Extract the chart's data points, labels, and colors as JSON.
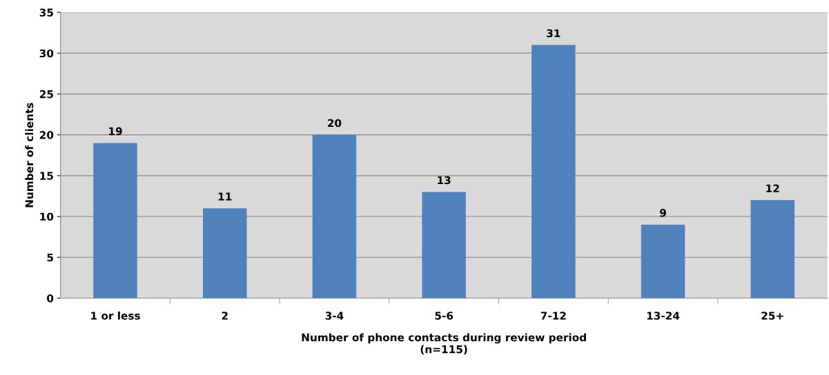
{
  "chart_data": {
    "type": "bar",
    "xlabel": "Number of phone contacts during review period\n(n=115)",
    "ylabel": "Number of clients",
    "categories": [
      "1 or less",
      "2",
      "3-4",
      "5-6",
      "7-12",
      "13-24",
      "25+"
    ],
    "values": [
      19,
      11,
      20,
      13,
      31,
      9,
      12
    ],
    "color": "#4f81bd",
    "ylim": [
      0,
      35
    ],
    "yticks": [
      0,
      5,
      10,
      15,
      20,
      25,
      30,
      35
    ],
    "grid": "y",
    "data_labels": true,
    "legend": false
  }
}
